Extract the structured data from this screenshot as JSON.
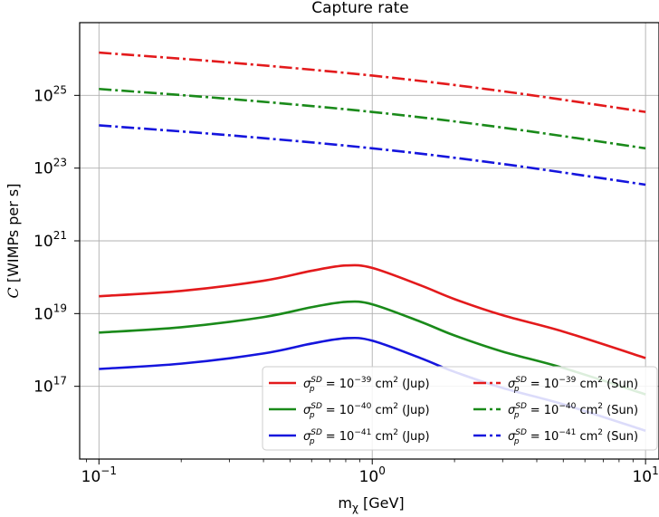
{
  "chart_data": {
    "type": "line",
    "title": "Capture rate",
    "xlabel": "mχ [GeV]",
    "ylabel": "C [WIMPs per s]",
    "xscale": "log",
    "yscale": "log",
    "xlim": [
      0.085,
      11.2
    ],
    "ylim": [
      1000000000000000.0,
      1e+27
    ],
    "grid": true,
    "legend_position": "lower-right",
    "x_ticks": [
      {
        "value": 0.1,
        "base": "10",
        "exp": "−1"
      },
      {
        "value": 1,
        "base": "10",
        "exp": "0"
      },
      {
        "value": 10,
        "base": "10",
        "exp": "1"
      }
    ],
    "y_ticks": [
      {
        "value": 1e+17,
        "base": "10",
        "exp": "17"
      },
      {
        "value": 1e+19,
        "base": "10",
        "exp": "19"
      },
      {
        "value": 1e+21,
        "base": "10",
        "exp": "21"
      },
      {
        "value": 1e+23,
        "base": "10",
        "exp": "23"
      },
      {
        "value": 1e+25,
        "base": "10",
        "exp": "25"
      }
    ],
    "series": [
      {
        "name": "σpSD = 10−39 cm2 (Jup)",
        "label_exp": "−39",
        "label_tail": "(Jup)",
        "color": "#e31a1c",
        "style": "solid",
        "x": [
          0.1,
          0.2,
          0.4,
          0.6,
          0.8,
          1.0,
          1.5,
          2,
          3,
          5,
          10
        ],
        "y": [
          3e+19,
          4.2e+19,
          8e+19,
          1.5e+20,
          2.1e+20,
          1.8e+20,
          6e+19,
          2.5e+19,
          9e+18,
          3.2e+18,
          6e+17
        ]
      },
      {
        "name": "σpSD = 10−40 cm2 (Jup)",
        "label_exp": "−40",
        "label_tail": "(Jup)",
        "color": "#1a8a1a",
        "style": "solid",
        "x": [
          0.1,
          0.2,
          0.4,
          0.6,
          0.8,
          1.0,
          1.5,
          2,
          3,
          5,
          10
        ],
        "y": [
          3e+18,
          4.2e+18,
          8e+18,
          1.5e+19,
          2.1e+19,
          1.8e+19,
          6e+18,
          2.5e+18,
          9e+17,
          3.2e+17,
          6e+16
        ]
      },
      {
        "name": "σpSD = 10−41 cm2 (Jup)",
        "label_exp": "−41",
        "label_tail": "(Jup)",
        "color": "#1515dd",
        "style": "solid",
        "x": [
          0.1,
          0.2,
          0.4,
          0.6,
          0.8,
          1.0,
          1.5,
          2,
          3,
          5,
          10
        ],
        "y": [
          3e+17,
          4.2e+17,
          8e+17,
          1.5e+18,
          2.1e+18,
          1.8e+18,
          6e+17,
          2.5e+17,
          9e+16,
          3.2e+16,
          6000000000000000.0
        ]
      },
      {
        "name": "σpSD = 10−39 cm2 (Sun)",
        "label_exp": "−39",
        "label_tail": "(Sun)",
        "color": "#e31a1c",
        "style": "dashdot",
        "x": [
          0.1,
          0.3,
          1,
          3,
          10
        ],
        "y": [
          1.5e+26,
          8e+25,
          3.5e+25,
          1.3e+25,
          3.5e+24
        ]
      },
      {
        "name": "σpSD = 10−40 cm2 (Sun)",
        "label_exp": "−40",
        "label_tail": "(Sun)",
        "color": "#1a8a1a",
        "style": "dashdot",
        "x": [
          0.1,
          0.3,
          1,
          3,
          10
        ],
        "y": [
          1.5e+25,
          8e+24,
          3.5e+24,
          1.3e+24,
          3.5e+23
        ]
      },
      {
        "name": "σpSD = 10−41 cm2 (Sun)",
        "label_exp": "−41",
        "label_tail": "(Sun)",
        "color": "#1515dd",
        "style": "dashdot",
        "x": [
          0.1,
          0.3,
          1,
          3,
          10
        ],
        "y": [
          1.5e+24,
          8e+23,
          3.5e+23,
          1.3e+23,
          3.5e+22
        ]
      }
    ]
  }
}
